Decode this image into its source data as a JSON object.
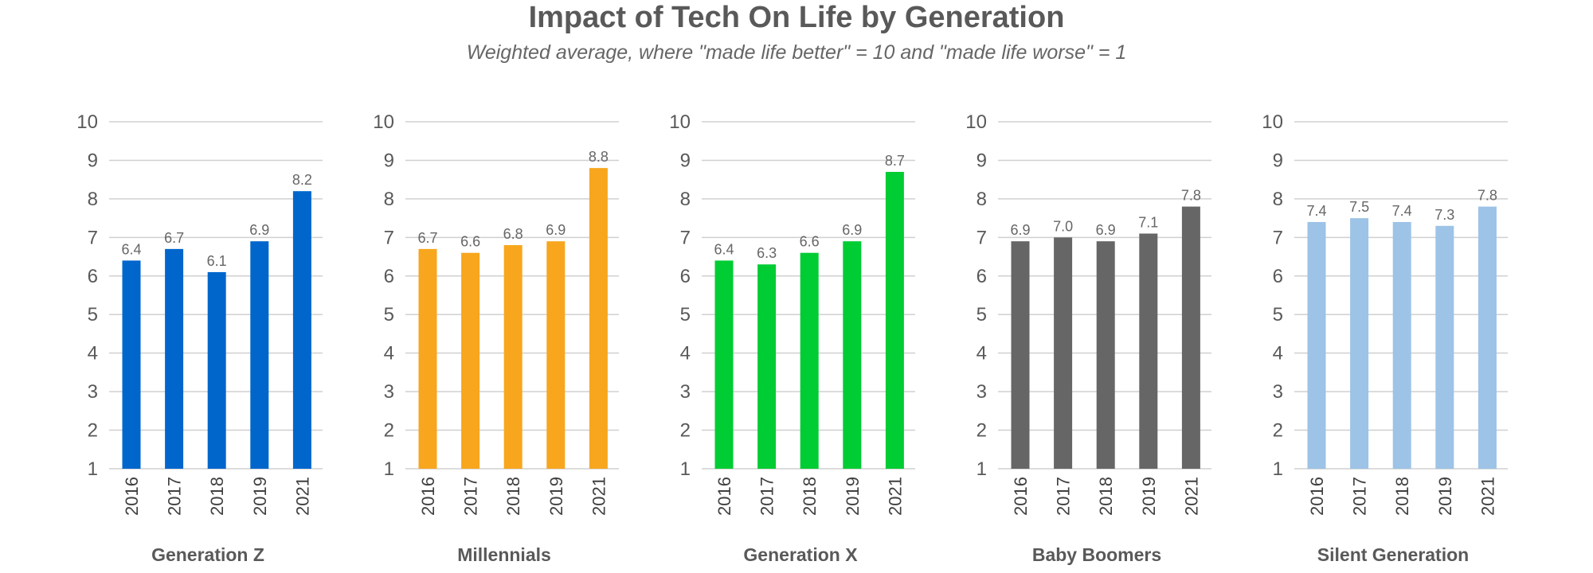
{
  "chart_data": {
    "type": "bar",
    "title": "Impact of Tech On Life by Generation",
    "subtitle": "Weighted average, where \"made life better\" = 10 and \"made life worse\" = 1",
    "ylim": [
      1,
      10
    ],
    "yticks": [
      "1",
      "2",
      "3",
      "4",
      "5",
      "6",
      "7",
      "8",
      "9",
      "10"
    ],
    "grid": true,
    "categories": [
      "2016",
      "2017",
      "2018",
      "2019",
      "2021"
    ],
    "panels": [
      {
        "name": "Generation Z",
        "color": "#0066CC",
        "values": [
          6.4,
          6.7,
          6.1,
          6.9,
          8.2
        ],
        "labels": [
          "6.4",
          "6.7",
          "6.1",
          "6.9",
          "8.2"
        ]
      },
      {
        "name": "Millennials",
        "color": "#F7A61E",
        "values": [
          6.7,
          6.6,
          6.8,
          6.9,
          8.8
        ],
        "labels": [
          "6.7",
          "6.6",
          "6.8",
          "6.9",
          "8.8"
        ]
      },
      {
        "name": "Generation X",
        "color": "#00CC33",
        "values": [
          6.4,
          6.3,
          6.6,
          6.9,
          8.7
        ],
        "labels": [
          "6.4",
          "6.3",
          "6.6",
          "6.9",
          "8.7"
        ]
      },
      {
        "name": "Baby Boomers",
        "color": "#666666",
        "values": [
          6.9,
          7.0,
          6.9,
          7.1,
          7.8
        ],
        "labels": [
          "6.9",
          "7.0",
          "6.9",
          "7.1",
          "7.8"
        ]
      },
      {
        "name": "Silent Generation",
        "color": "#9DC3E6",
        "values": [
          7.4,
          7.5,
          7.4,
          7.3,
          7.8
        ],
        "labels": [
          "7.4",
          "7.5",
          "7.4",
          "7.3",
          "7.8"
        ]
      }
    ]
  }
}
